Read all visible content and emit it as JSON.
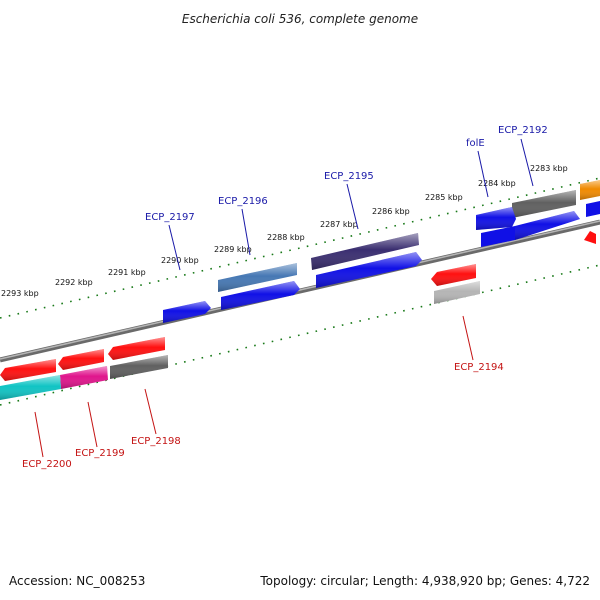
{
  "title": "Escherichia coli 536, complete genome",
  "footer": {
    "accession": "Accession: NC_008253",
    "topology": "Topology: circular; Length: 4,938,920 bp; Genes: 4,722"
  },
  "colors": {
    "backbone": "#7d7d7d",
    "ticks": "#1a7a1a",
    "label_forward": "#1a1aa8",
    "label_reverse": "#c41414"
  },
  "kbp_ticks": [
    "2283 kbp",
    "2284 kbp",
    "2285 kbp",
    "2286 kbp",
    "2287 kbp",
    "2288 kbp",
    "2289 kbp",
    "2290 kbp",
    "2291 kbp",
    "2292 kbp",
    "2293 kbp"
  ],
  "gene_labels_forward": [
    "ECP_2192",
    "folE",
    "ECP_2195",
    "ECP_2196",
    "ECP_2197"
  ],
  "gene_labels_reverse": [
    "ECP_2194",
    "ECP_2198",
    "ECP_2199",
    "ECP_2200"
  ]
}
